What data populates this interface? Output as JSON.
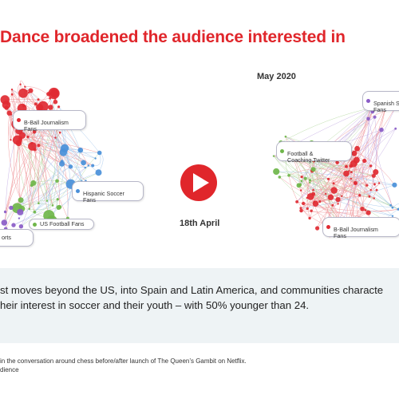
{
  "title": "Dance broadened the audience interested in",
  "dates": {
    "right": "May 2020",
    "middle": "18th April"
  },
  "left_network": {
    "labels": {
      "bball": "B-Ball Journalism\nFans",
      "hispanic": "Hispanic Soccer\nFans",
      "usfootball": "US Football Fans",
      "sports": "orts"
    }
  },
  "right_network": {
    "labels": {
      "spanish": "Spanish Sp\nFans",
      "football": "Football &\nCoaching Twitter",
      "bball": "B-Ball Journalism\nFans"
    }
  },
  "colors": {
    "accent": "#e0262b",
    "red_node": "#e02a32",
    "blue_node": "#4a90d9",
    "green_node": "#6fb64a",
    "purple_node": "#8a5cc7",
    "band_bg": "#eef3f5"
  },
  "icons": {
    "play": "play-icon"
  },
  "band": {
    "line1": "st moves beyond the US, into Spain and Latin America, and communities characte",
    "line2": "heir interest in soccer and their youth – with 50% younger than 24."
  },
  "footnotes": {
    "line1": " in the conversation around chess before/after launch of The Queen’s Gambit on Netflix.",
    "line2": "dience"
  }
}
